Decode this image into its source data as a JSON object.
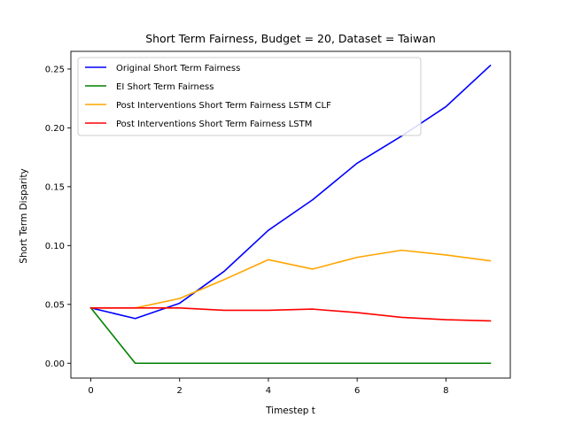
{
  "chart_data": {
    "type": "line",
    "title": "Short Term Fairness, Budget = 20, Dataset = Taiwan",
    "xlabel": "Timestep t",
    "ylabel": "Short Term Disparity",
    "x": [
      0,
      1,
      2,
      3,
      4,
      5,
      6,
      7,
      8,
      9
    ],
    "xlim": [
      -0.45,
      9.45
    ],
    "ylim": [
      -0.0126,
      0.265
    ],
    "xticks": [
      0,
      2,
      4,
      6,
      8
    ],
    "yticks": [
      0.0,
      0.05,
      0.1,
      0.15,
      0.2,
      0.25
    ],
    "xtick_labels": [
      "0",
      "2",
      "4",
      "6",
      "8"
    ],
    "ytick_labels": [
      "0.00",
      "0.05",
      "0.10",
      "0.15",
      "0.20",
      "0.25"
    ],
    "grid": false,
    "legend_position": "top-left",
    "series": [
      {
        "name": "Original Short Term Fairness",
        "color": "#0000ff",
        "values": [
          0.047,
          0.038,
          0.051,
          0.078,
          0.113,
          0.139,
          0.17,
          0.193,
          0.218,
          0.253
        ]
      },
      {
        "name": "EI Short Term Fairness",
        "color": "#008000",
        "values": [
          0.047,
          0.0,
          0.0,
          0.0,
          0.0,
          0.0,
          0.0,
          0.0,
          0.0,
          0.0
        ]
      },
      {
        "name": "Post Interventions Short Term Fairness LSTM CLF",
        "color": "#ffa500",
        "values": [
          0.047,
          0.047,
          0.055,
          0.071,
          0.088,
          0.08,
          0.09,
          0.096,
          0.092,
          0.087
        ]
      },
      {
        "name": "Post Interventions Short Term Fairness LSTM",
        "color": "#ff0000",
        "values": [
          0.047,
          0.047,
          0.047,
          0.045,
          0.045,
          0.046,
          0.043,
          0.039,
          0.037,
          0.036
        ]
      }
    ]
  }
}
